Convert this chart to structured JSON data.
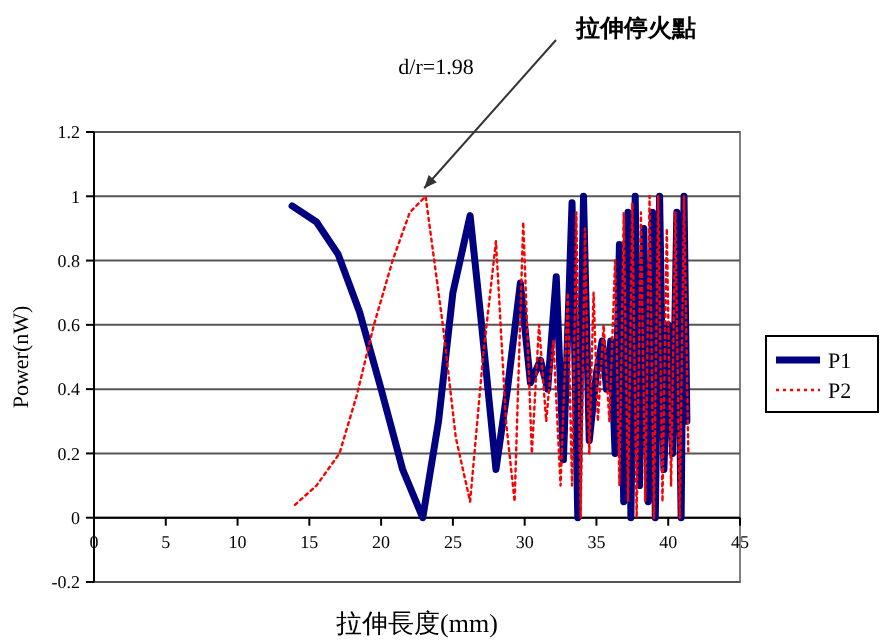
{
  "chart_data": {
    "type": "line",
    "xlabel": "拉伸長度(mm)",
    "ylabel": "Power(nW)",
    "xlim": [
      0,
      45
    ],
    "xticks": [
      0,
      5,
      10,
      15,
      20,
      25,
      30,
      35,
      40,
      45
    ],
    "ylim": [
      -0.2,
      1.2
    ],
    "yticks": [
      -0.2,
      0,
      0.2,
      0.4,
      0.6,
      0.8,
      1,
      1.2
    ],
    "grid": "y",
    "legend": "right",
    "annotations": [
      "d/r=1.98",
      {
        "text": "拉伸停火點",
        "x": 23,
        "y": 1
      }
    ],
    "series": [
      {
        "name": "P1",
        "color": "#000080",
        "line_style": "solid",
        "x": [
          13.8,
          15.5,
          17,
          18.5,
          20,
          21.5,
          22.9,
          24,
          25,
          26.2,
          27,
          28.0,
          28.8,
          29.7,
          30.4,
          31.1,
          31.6,
          32.2,
          32.7,
          33.3,
          33.7,
          34.1,
          34.5,
          35.0,
          35.4,
          35.7,
          36.0,
          36.3,
          36.6,
          36.9,
          37.2,
          37.4,
          37.7,
          38.0,
          38.3,
          38.6,
          38.9,
          39.1,
          39.4,
          39.7,
          40.0,
          40.3,
          40.6,
          40.9,
          41.1,
          41.3
        ],
        "values": [
          0.97,
          0.92,
          0.82,
          0.64,
          0.4,
          0.15,
          0.0,
          0.3,
          0.7,
          0.94,
          0.6,
          0.15,
          0.4,
          0.73,
          0.42,
          0.49,
          0.4,
          0.75,
          0.18,
          0.98,
          0.0,
          1.0,
          0.24,
          0.45,
          0.55,
          0.4,
          0.55,
          0.2,
          0.85,
          0.05,
          0.95,
          0.0,
          1.0,
          0.1,
          0.9,
          0.05,
          0.95,
          0.0,
          1.0,
          0.15,
          0.6,
          0.2,
          0.95,
          0.0,
          1.0,
          0.3
        ]
      },
      {
        "name": "P2",
        "color": "#ff0000",
        "line_style": "dotted",
        "x": [
          14,
          15.5,
          17.1,
          18.3,
          19.5,
          20.8,
          22,
          23.1,
          24.3,
          25.2,
          26.2,
          27.1,
          28.0,
          28.7,
          29.3,
          29.9,
          30.5,
          31.0,
          31.5,
          32.0,
          32.5,
          33.0,
          33.3,
          33.6,
          33.9,
          34.2,
          34.5,
          34.8,
          35.1,
          35.5,
          35.9,
          36.3,
          36.6,
          36.9,
          37.2,
          37.5,
          37.8,
          38.1,
          38.4,
          38.7,
          39.0,
          39.3,
          39.6,
          39.9,
          40.2,
          40.5,
          40.8,
          41.1,
          41.4
        ],
        "values": [
          0.04,
          0.1,
          0.2,
          0.38,
          0.6,
          0.8,
          0.95,
          1.0,
          0.6,
          0.25,
          0.05,
          0.5,
          0.86,
          0.3,
          0.05,
          0.92,
          0.2,
          0.6,
          0.3,
          0.55,
          0.1,
          0.7,
          0.1,
          0.95,
          0.0,
          0.9,
          0.2,
          0.7,
          0.3,
          0.6,
          0.3,
          0.8,
          0.1,
          0.95,
          0.05,
          0.98,
          0.0,
          0.95,
          0.05,
          1.0,
          0.0,
          1.0,
          0.05,
          0.9,
          0.1,
          0.95,
          0.0,
          1.0,
          0.2
        ]
      }
    ]
  }
}
